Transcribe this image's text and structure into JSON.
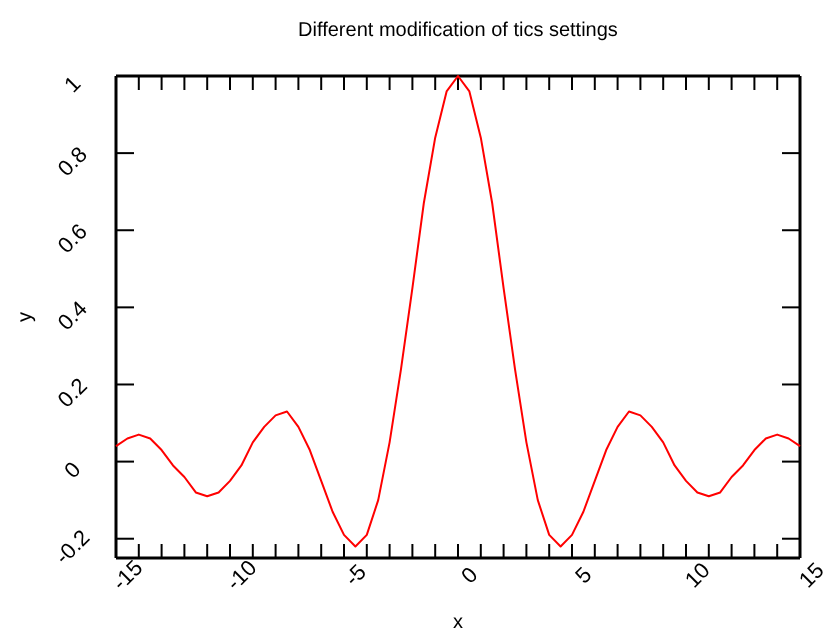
{
  "chart_data": {
    "type": "line",
    "title": "Different modification of tics settings",
    "xlabel": "x",
    "ylabel": "y",
    "x": [
      -15,
      -14.5,
      -14,
      -13.5,
      -13,
      -12.5,
      -12,
      -11.5,
      -11,
      -10.5,
      -10,
      -9.5,
      -9,
      -8.5,
      -8,
      -7.5,
      -7,
      -6.5,
      -6,
      -5.5,
      -5,
      -4.5,
      -4,
      -3.5,
      -3,
      -2.5,
      -2,
      -1.5,
      -1,
      -0.5,
      0,
      0.5,
      1,
      1.5,
      2,
      2.5,
      3,
      3.5,
      4,
      4.5,
      5,
      5.5,
      6,
      6.5,
      7,
      7.5,
      8,
      8.5,
      9,
      9.5,
      10,
      10.5,
      11,
      11.5,
      12,
      12.5,
      13,
      13.5,
      14,
      14.5,
      15
    ],
    "series": [
      {
        "color": "#ff0000",
        "values": [
          0.04,
          0.06,
          0.07,
          0.06,
          0.03,
          -0.01,
          -0.04,
          -0.08,
          -0.09,
          -0.08,
          -0.05,
          -0.01,
          0.05,
          0.09,
          0.12,
          0.13,
          0.09,
          0.03,
          -0.05,
          -0.13,
          -0.19,
          -0.22,
          -0.19,
          -0.1,
          0.05,
          0.24,
          0.45,
          0.67,
          0.84,
          0.96,
          1,
          0.96,
          0.84,
          0.67,
          0.45,
          0.24,
          0.05,
          -0.1,
          -0.19,
          -0.22,
          -0.19,
          -0.13,
          -0.05,
          0.03,
          0.09,
          0.13,
          0.12,
          0.09,
          0.05,
          -0.01,
          -0.05,
          -0.08,
          -0.09,
          -0.08,
          -0.04,
          -0.01,
          0.03,
          0.06,
          0.07,
          0.06,
          0.04
        ]
      }
    ],
    "xlim": [
      -15,
      15
    ],
    "xticks": [
      -15,
      {
        "value": -14,
        "label": null
      },
      {
        "value": -13,
        "label": null
      },
      {
        "value": -12,
        "label": null
      },
      {
        "value": -11,
        "label": null
      },
      -10,
      {
        "value": -9,
        "label": null
      },
      {
        "value": -8,
        "label": null
      },
      {
        "value": -7,
        "label": null
      },
      {
        "value": -6,
        "label": null
      },
      -5,
      {
        "value": -4,
        "label": null
      },
      {
        "value": -3,
        "label": null
      },
      {
        "value": -2,
        "label": null
      },
      {
        "value": -1,
        "label": null
      },
      0,
      {
        "value": 1,
        "label": null
      },
      {
        "value": 2,
        "label": null
      },
      {
        "value": 3,
        "label": null
      },
      {
        "value": 4,
        "label": null
      },
      5,
      {
        "value": 6,
        "label": null
      },
      {
        "value": 7,
        "label": null
      },
      {
        "value": 8,
        "label": null
      },
      {
        "value": 9,
        "label": null
      },
      10,
      {
        "value": 11,
        "label": null
      },
      {
        "value": 12,
        "label": null
      },
      {
        "value": 13,
        "label": null
      },
      {
        "value": 14,
        "label": null
      },
      15
    ],
    "ylim": [
      -0.25,
      1
    ],
    "yticks": [
      -0.2,
      0,
      0.2,
      0.4,
      0.6,
      0.8,
      1
    ],
    "grid": false,
    "marker": "none",
    "line_style": "solid"
  }
}
